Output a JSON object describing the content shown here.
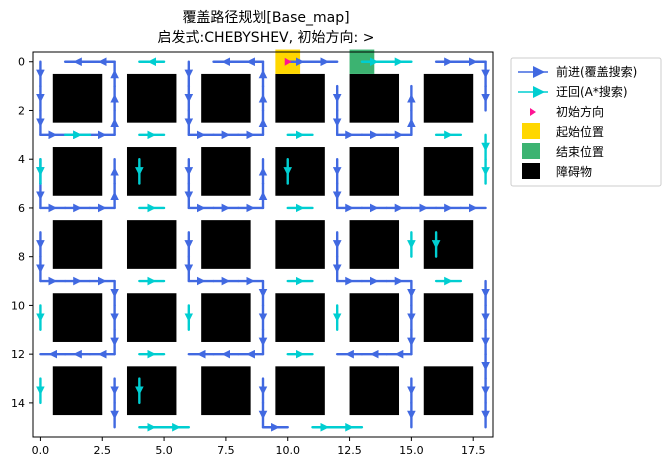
{
  "chart_data": {
    "type": "grid-path-map",
    "title": [
      "覆盖路径规划[Base_map]",
      "启发式:CHEBYSHEV, 初始方向: >"
    ],
    "xlabel": "",
    "ylabel": "",
    "xlim": [
      -0.3,
      18.3
    ],
    "ylim": [
      15.4,
      -0.4
    ],
    "x_ticks": [
      0.0,
      2.5,
      5.0,
      7.5,
      10.0,
      12.5,
      15.0,
      17.5
    ],
    "x_tick_labels": [
      "0.0",
      "2.5",
      "5.0",
      "7.5",
      "10.0",
      "12.5",
      "15.0",
      "17.5"
    ],
    "y_ticks": [
      0,
      2,
      4,
      6,
      8,
      10,
      12,
      14
    ],
    "y_tick_labels": [
      "0",
      "2",
      "4",
      "6",
      "8",
      "10",
      "12",
      "14"
    ],
    "y_inverted": true,
    "grid": false,
    "legend": {
      "placement": "outside-top-right",
      "entries": [
        {
          "label": "前进(覆盖搜索)",
          "kind": "forward",
          "color": "#4169e1"
        },
        {
          "label": "迂回(A*搜索)",
          "kind": "detour",
          "color": "#00ced1"
        },
        {
          "label": "初始方向",
          "kind": "start-dir",
          "color": "#ff1493"
        },
        {
          "label": "起始位置",
          "kind": "start",
          "color": "#ffd700"
        },
        {
          "label": "结束位置",
          "kind": "end",
          "color": "#3cb371"
        },
        {
          "label": "障碍物",
          "kind": "obstacle",
          "color": "#000000"
        }
      ]
    },
    "obstacles": {
      "color": "#000000",
      "cols": [
        [
          1,
          2
        ],
        [
          4,
          5
        ],
        [
          7,
          8
        ],
        [
          10,
          11
        ],
        [
          13,
          14
        ],
        [
          16,
          17
        ]
      ],
      "rows": [
        [
          1,
          2
        ],
        [
          4,
          5
        ],
        [
          7,
          8
        ],
        [
          10,
          11
        ],
        [
          13,
          14
        ]
      ]
    },
    "start_cell": {
      "x": 10,
      "y": 0,
      "color": "#ffd700"
    },
    "end_cell": {
      "x": 13,
      "y": 0,
      "color": "#3cb371"
    },
    "initial_direction": {
      "x": 10,
      "y": 0,
      "dx": 1,
      "dy": 0,
      "color": "#ff1493"
    },
    "forward_color": "#4169e1",
    "detour_color": "#00ced1",
    "forward_paths": [
      [
        [
          10,
          0
        ],
        [
          11,
          0
        ],
        [
          12,
          0
        ]
      ],
      [
        [
          0,
          0
        ],
        [
          0,
          1
        ],
        [
          0,
          2
        ],
        [
          0,
          3
        ],
        [
          1,
          3
        ],
        [
          2,
          3
        ],
        [
          3,
          3
        ],
        [
          3,
          2
        ],
        [
          3,
          1
        ],
        [
          3,
          0
        ],
        [
          2,
          0
        ],
        [
          1,
          0
        ]
      ],
      [
        [
          6,
          0
        ],
        [
          6,
          1
        ],
        [
          6,
          2
        ],
        [
          6,
          3
        ],
        [
          7,
          3
        ],
        [
          8,
          3
        ],
        [
          9,
          3
        ],
        [
          9,
          2
        ],
        [
          9,
          1
        ],
        [
          9,
          0
        ],
        [
          8,
          0
        ],
        [
          7,
          0
        ]
      ],
      [
        [
          12,
          1
        ],
        [
          12,
          2
        ],
        [
          12,
          3
        ],
        [
          13,
          3
        ],
        [
          14,
          3
        ],
        [
          15,
          3
        ],
        [
          15,
          2
        ],
        [
          15,
          1
        ]
      ],
      [
        [
          16,
          0
        ],
        [
          17,
          0
        ],
        [
          18,
          0
        ],
        [
          18,
          1
        ],
        [
          18,
          2
        ]
      ],
      [
        [
          0,
          4
        ],
        [
          0,
          5
        ],
        [
          0,
          6
        ],
        [
          1,
          6
        ],
        [
          2,
          6
        ],
        [
          3,
          6
        ],
        [
          3,
          5
        ],
        [
          3,
          4
        ]
      ],
      [
        [
          6,
          4
        ],
        [
          6,
          5
        ],
        [
          6,
          6
        ],
        [
          7,
          6
        ],
        [
          8,
          6
        ],
        [
          9,
          6
        ],
        [
          9,
          5
        ],
        [
          9,
          4
        ]
      ],
      [
        [
          12,
          4
        ],
        [
          12,
          5
        ],
        [
          12,
          6
        ],
        [
          13,
          6
        ],
        [
          14,
          6
        ],
        [
          15,
          6
        ],
        [
          16,
          6
        ],
        [
          17,
          6
        ],
        [
          18,
          6
        ]
      ],
      [
        [
          0,
          7
        ],
        [
          0,
          8
        ],
        [
          0,
          9
        ],
        [
          1,
          9
        ],
        [
          2,
          9
        ],
        [
          3,
          9
        ],
        [
          3,
          10
        ],
        [
          3,
          11
        ],
        [
          3,
          12
        ],
        [
          2,
          12
        ],
        [
          1,
          12
        ],
        [
          0,
          12
        ]
      ],
      [
        [
          6,
          7
        ],
        [
          6,
          8
        ],
        [
          6,
          9
        ],
        [
          7,
          9
        ],
        [
          8,
          9
        ],
        [
          9,
          9
        ],
        [
          9,
          10
        ],
        [
          9,
          11
        ],
        [
          9,
          12
        ],
        [
          8,
          12
        ],
        [
          7,
          12
        ],
        [
          6,
          12
        ]
      ],
      [
        [
          12,
          7
        ],
        [
          12,
          8
        ],
        [
          12,
          9
        ],
        [
          13,
          9
        ],
        [
          14,
          9
        ],
        [
          15,
          9
        ],
        [
          15,
          10
        ],
        [
          15,
          11
        ],
        [
          15,
          12
        ],
        [
          14,
          12
        ],
        [
          13,
          12
        ],
        [
          12,
          12
        ]
      ],
      [
        [
          18,
          9
        ],
        [
          18,
          10
        ],
        [
          18,
          11
        ],
        [
          18,
          12
        ],
        [
          18,
          13
        ],
        [
          18,
          14
        ],
        [
          18,
          15
        ]
      ],
      [
        [
          3,
          13
        ],
        [
          3,
          14
        ],
        [
          3,
          15
        ]
      ],
      [
        [
          9,
          13
        ],
        [
          9,
          14
        ],
        [
          9,
          15
        ],
        [
          10,
          15
        ]
      ],
      [
        [
          15,
          13
        ],
        [
          15,
          14
        ],
        [
          15,
          15
        ]
      ]
    ],
    "detour_paths": [
      [
        [
          5,
          0
        ],
        [
          4,
          0
        ]
      ],
      [
        [
          13,
          0
        ],
        [
          14,
          0
        ],
        [
          15,
          0
        ]
      ],
      [
        [
          1,
          3
        ],
        [
          2,
          3
        ]
      ],
      [
        [
          4,
          3
        ],
        [
          5,
          3
        ]
      ],
      [
        [
          10,
          3
        ],
        [
          11,
          3
        ]
      ],
      [
        [
          16,
          3
        ],
        [
          17,
          3
        ]
      ],
      [
        [
          18,
          3
        ],
        [
          18,
          4
        ],
        [
          18,
          5
        ]
      ],
      [
        [
          0,
          4
        ],
        [
          0,
          5
        ]
      ],
      [
        [
          4,
          4
        ],
        [
          4,
          5
        ]
      ],
      [
        [
          10,
          4
        ],
        [
          10,
          5
        ]
      ],
      [
        [
          4,
          6
        ],
        [
          5,
          6
        ]
      ],
      [
        [
          10,
          6
        ],
        [
          11,
          6
        ]
      ],
      [
        [
          15,
          7
        ],
        [
          15,
          8
        ]
      ],
      [
        [
          16,
          7
        ],
        [
          16,
          8
        ]
      ],
      [
        [
          4,
          9
        ],
        [
          5,
          9
        ]
      ],
      [
        [
          10,
          9
        ],
        [
          11,
          9
        ]
      ],
      [
        [
          16,
          9
        ],
        [
          17,
          9
        ]
      ],
      [
        [
          0,
          10
        ],
        [
          0,
          11
        ]
      ],
      [
        [
          6,
          10
        ],
        [
          6,
          11
        ]
      ],
      [
        [
          12,
          10
        ],
        [
          12,
          11
        ]
      ],
      [
        [
          4,
          12
        ],
        [
          5,
          12
        ]
      ],
      [
        [
          10,
          12
        ],
        [
          11,
          12
        ]
      ],
      [
        [
          0,
          13
        ],
        [
          0,
          14
        ]
      ],
      [
        [
          4,
          13
        ],
        [
          4,
          14
        ]
      ],
      [
        [
          4,
          15
        ],
        [
          5,
          15
        ],
        [
          6,
          15
        ]
      ],
      [
        [
          11,
          15
        ],
        [
          12,
          15
        ],
        [
          13,
          15
        ]
      ]
    ]
  }
}
